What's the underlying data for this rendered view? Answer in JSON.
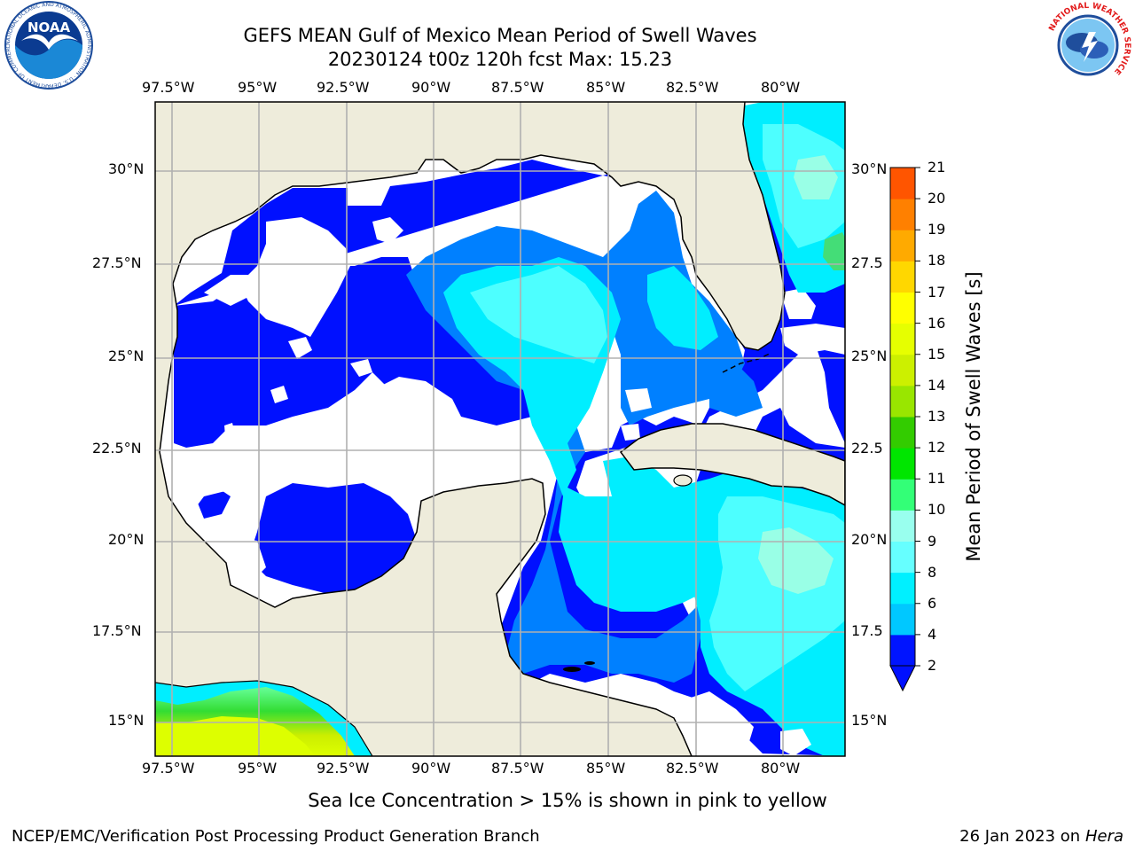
{
  "header": {
    "title_line1": "GEFS MEAN Gulf of Mexico Mean Period of Swell Waves",
    "title_line2": "20230124 t00z 120h fcst   Max: 15.23",
    "noaa_logo_text": "NOAA",
    "noaa_ring_text": "NATIONAL OCEANIC AND ATMOSPHERIC ADMINISTRATION · U.S. DEPARTMENT OF COMMERCE",
    "nws_ring_text": "NATIONAL WEATHER SERVICE"
  },
  "map": {
    "lon_labels": [
      "97.5°W",
      "95°W",
      "92.5°W",
      "90°W",
      "87.5°W",
      "85°W",
      "82.5°W",
      "80°W"
    ],
    "lat_labels_left": [
      "30°N",
      "27.5°N",
      "25°N",
      "22.5°N",
      "20°N",
      "17.5°N",
      "15°N"
    ],
    "lat_labels_right": [
      "30°N",
      "27.5",
      "25°N",
      "22.5",
      "20°N",
      "17.5",
      "15°N"
    ],
    "colors": {
      "land": "#eeecdb",
      "band_2_4": "#0010ff",
      "band_4_6": "#0080ff",
      "band_6_8": "#00eeff",
      "band_8_9": "#4dffff",
      "band_9_10": "#99ffe6",
      "ice_green": "#33dd33",
      "ice_yellow": "#ccee00",
      "grid": "#b0b0b0"
    }
  },
  "colorbar": {
    "label": "Mean Period of Swell Waves [s]",
    "ticks": [
      "2",
      "4",
      "6",
      "8",
      "9",
      "10",
      "11",
      "12",
      "13",
      "14",
      "15",
      "16",
      "17",
      "18",
      "19",
      "20",
      "21"
    ],
    "colors": [
      "#0014ff",
      "#00c8ff",
      "#00f0ff",
      "#66ffff",
      "#99ffee",
      "#33ff77",
      "#00e600",
      "#33cc00",
      "#99e600",
      "#ccf000",
      "#e6ff00",
      "#ffff00",
      "#ffd700",
      "#ffaa00",
      "#ff8000",
      "#ff5500",
      "#ff2200",
      "#ff0000"
    ]
  },
  "footer": {
    "note": "Sea Ice Concentration > 15% is shown in pink to yellow",
    "left": "NCEP/EMC/Verification Post Processing Product Generation Branch",
    "right_prefix": "26 Jan 2023 on ",
    "right_machine": "Hera"
  }
}
